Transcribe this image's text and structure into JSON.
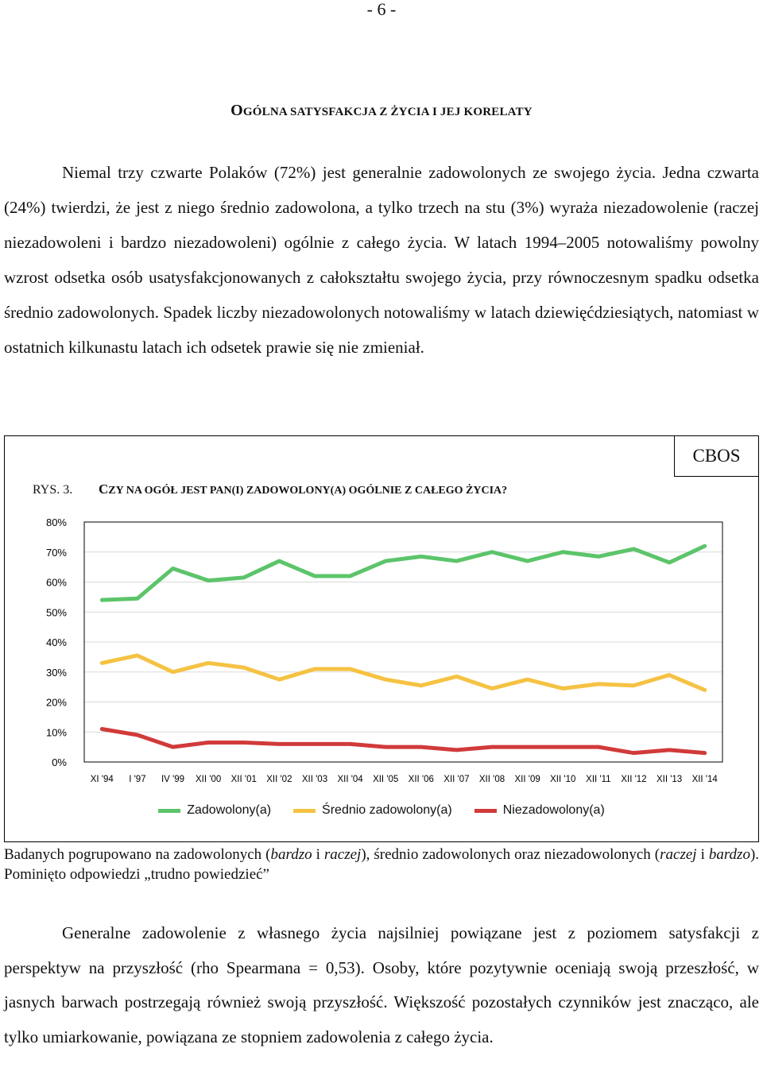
{
  "page_number": "- 6 -",
  "heading": {
    "first_letter": "O",
    "rest": "GÓLNA SATYSFAKCJA Z ŻYCIA I JEJ KORELATY"
  },
  "paragraph1": "Niemal trzy czwarte Polaków (72%) jest generalnie zadowolonych ze swojego życia. Jedna czwarta (24%) twierdzi, że jest z niego średnio zadowolona, a tylko trzech na stu (3%) wyraża niezadowolenie (raczej niezadowoleni i bardzo niezadowoleni) ogólnie z całego życia. W latach 1994–2005 notowaliśmy powolny wzrost odsetka osób usatysfakcjonowanych z całokształtu swojego życia, przy równoczesnym spadku odsetka średnio zadowolonych. Spadek liczby niezadowolonych notowaliśmy w latach dziewięćdziesiątych, natomiast w ostatnich kilkunastu latach ich odsetek prawie się nie zmieniał.",
  "figure": {
    "source": "CBOS",
    "label": "RYS. 3.",
    "title_first": "C",
    "title_rest": "ZY NA OGÓŁ JEST PAN(I) ZADOWOLONY(A) OGÓLNIE Z CAŁEGO ŻYCIA?"
  },
  "chart_data": {
    "type": "line",
    "title": "CZY NA OGÓŁ JEST PAN(I) ZADOWOLONY(A) OGÓLNIE Z CAŁEGO ŻYCIA?",
    "xlabel": "",
    "ylabel": "",
    "ylim": [
      0,
      80
    ],
    "y_ticks": [
      "0%",
      "10%",
      "20%",
      "30%",
      "40%",
      "50%",
      "60%",
      "70%",
      "80%"
    ],
    "grid": "horizontal",
    "legend_position": "bottom",
    "categories": [
      "XI '94",
      "I '97",
      "IV '99",
      "XII '00",
      "XII '01",
      "XII '02",
      "XII '03",
      "XII '04",
      "XII '05",
      "XII '06",
      "XII '07",
      "XII '08",
      "XII '09",
      "XII '10",
      "XII '11",
      "XII '12",
      "XII '13",
      "XII '14"
    ],
    "series": [
      {
        "name": "Zadowolony(a)",
        "color": "#5cc46a",
        "values": [
          54,
          54.5,
          64.5,
          60.5,
          61.5,
          67,
          62,
          62,
          67,
          68.5,
          67,
          70,
          67,
          70,
          68.5,
          71,
          66.5,
          72
        ]
      },
      {
        "name": "Średnio zadowolony(a)",
        "color": "#f5c243",
        "values": [
          33,
          35.5,
          30,
          33,
          31.5,
          27.5,
          31,
          31,
          27.5,
          25.5,
          28.5,
          24.5,
          27.5,
          24.5,
          26,
          25.5,
          29,
          24
        ]
      },
      {
        "name": "Niezadowolony(a)",
        "color": "#d13a3a",
        "values": [
          11,
          9,
          5,
          6.5,
          6.5,
          6,
          6,
          6,
          5,
          5,
          4,
          5,
          5,
          5,
          5,
          3,
          4,
          3
        ]
      }
    ]
  },
  "note": {
    "p1": "Badanych pogrupowano na zadowolonych (",
    "i1": "bardzo",
    "p2": " i ",
    "i2": "raczej",
    "p3": "), średnio zadowolonych oraz niezadowolonych (",
    "i3": "raczej",
    "p4": " i ",
    "i4": "bardzo",
    "p5": "). Pominięto odpowiedzi „trudno powiedzieć”"
  },
  "paragraph2": "Generalne zadowolenie z własnego życia najsilniej powiązane jest z poziomem satysfakcji z perspektyw na przyszłość (rho Spearmana = 0,53). Osoby, które pozytywnie oceniają swoją przeszłość, w jasnych barwach postrzegają również swoją przyszłość. Większość pozostałych czynników jest znacząco, ale tylko umiarkowanie, powiązana ze stopniem zadowolenia z całego życia."
}
